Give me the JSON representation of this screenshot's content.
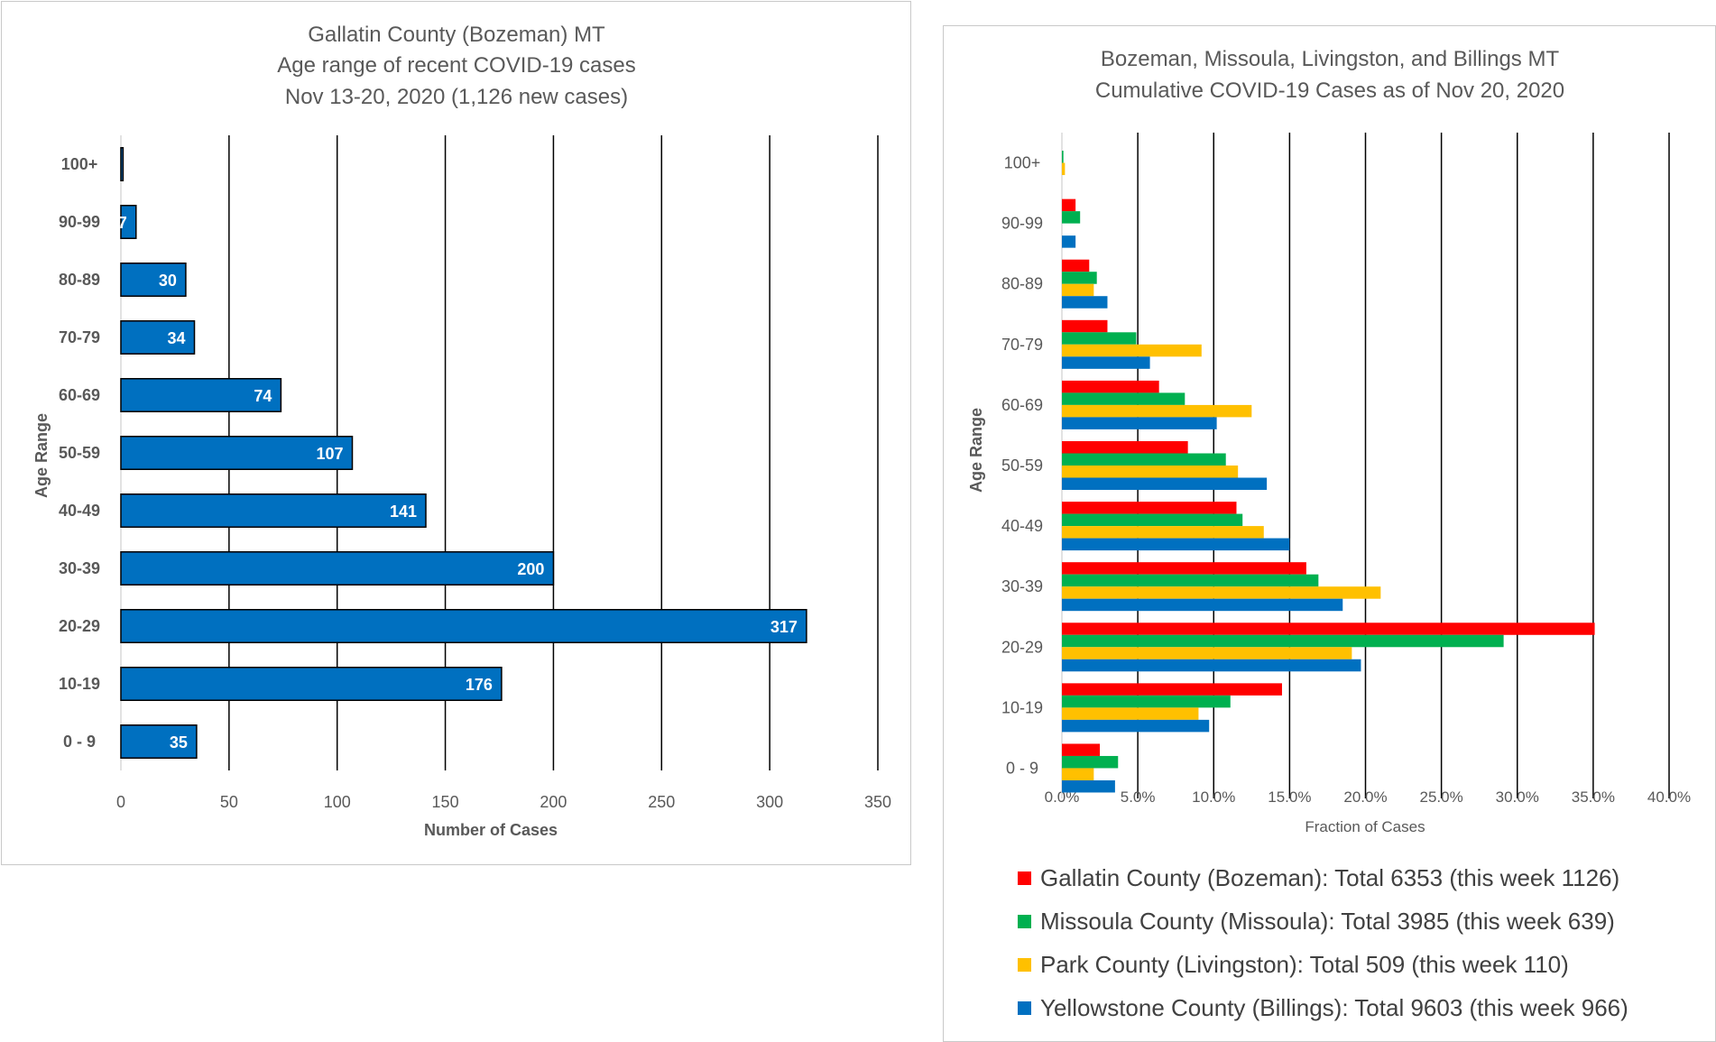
{
  "chart_data": [
    {
      "type": "bar",
      "orientation": "horizontal",
      "title": [
        "Gallatin County (Bozeman) MT",
        "Age range of recent COVID-19 cases",
        "Nov 13-20, 2020 (1,126 new cases)"
      ],
      "categories": [
        "0 - 9",
        "10-19",
        "20-29",
        "30-39",
        "40-49",
        "50-59",
        "60-69",
        "70-79",
        "80-89",
        "90-99",
        "100+"
      ],
      "values": [
        35,
        176,
        317,
        200,
        141,
        107,
        74,
        34,
        30,
        7,
        1
      ],
      "data_labels": [
        "35",
        "176",
        "317",
        "200",
        "141",
        "107",
        "74",
        "34",
        "30",
        "7",
        ""
      ],
      "xlabel": "Number of Cases",
      "ylabel": "Age Range",
      "xlim": [
        0,
        350
      ],
      "xticks": [
        "0",
        "50",
        "100",
        "150",
        "200",
        "250",
        "300",
        "350"
      ],
      "grid": "vertical",
      "bar_color": "#0070C0",
      "bar_outline": "#000000"
    },
    {
      "type": "bar",
      "orientation": "horizontal",
      "title": [
        "Bozeman, Missoula, Livingston, and Billings MT",
        "Cumulative COVID-19 Cases as of Nov 20, 2020"
      ],
      "categories": [
        "0 - 9",
        "10-19",
        "20-29",
        "30-39",
        "40-49",
        "50-59",
        "60-69",
        "70-79",
        "80-89",
        "90-99",
        "100+"
      ],
      "series": [
        {
          "name": "Gallatin County (Bozeman): Total 6353 (this week 1126)",
          "color": "#FF0000",
          "values": [
            2.5,
            14.5,
            35.1,
            16.1,
            11.5,
            8.3,
            6.4,
            3.0,
            1.8,
            0.9,
            0.0
          ]
        },
        {
          "name": "Missoula County (Missoula): Total 3985 (this week 639)",
          "color": "#00B050",
          "values": [
            3.7,
            11.1,
            29.1,
            16.9,
            11.9,
            10.8,
            8.1,
            4.9,
            2.3,
            1.2,
            0.1
          ]
        },
        {
          "name": "Park County (Livingston): Total 509 (this week 110)",
          "color": "#FFC000",
          "values": [
            2.1,
            9.0,
            19.1,
            21.0,
            13.3,
            11.6,
            12.5,
            9.2,
            2.1,
            0.0,
            0.2
          ]
        },
        {
          "name": "Yellowstone County (Billings): Total 9603 (this week 966)",
          "color": "#0070C0",
          "values": [
            3.5,
            9.7,
            19.7,
            18.5,
            15.0,
            13.5,
            10.2,
            5.8,
            3.0,
            0.9,
            0.0
          ]
        }
      ],
      "xlabel": "Fraction of Cases",
      "ylabel": "Age Range",
      "xlim": [
        0,
        40
      ],
      "xticks": [
        "0.0%",
        "5.0%",
        "10.0%",
        "15.0%",
        "20.0%",
        "25.0%",
        "30.0%",
        "35.0%",
        "40.0%"
      ],
      "grid": "vertical",
      "legend_position": "bottom"
    }
  ]
}
